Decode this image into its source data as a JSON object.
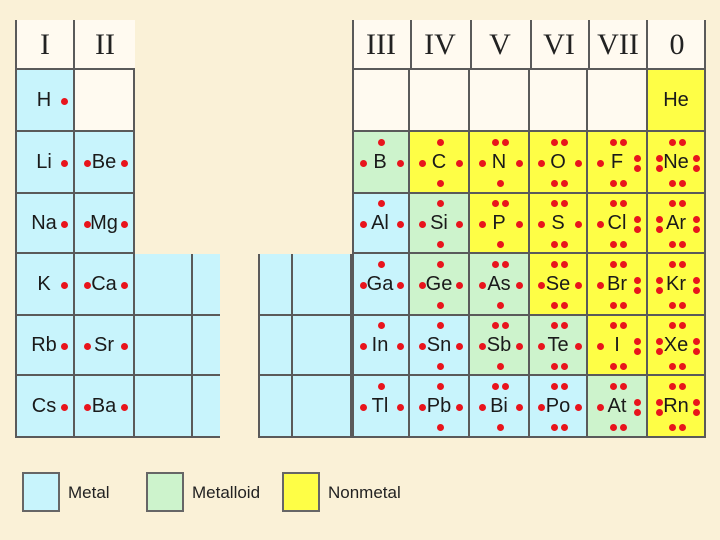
{
  "colors": {
    "metal": "#c8f4fc",
    "metalloid": "#cdf3cc",
    "nonmetal": "#fefe46",
    "empty": "#fffaf0",
    "dot": "#e8141c"
  },
  "groups": [
    {
      "label": "I",
      "col": 0
    },
    {
      "label": "II",
      "col": 1
    },
    {
      "label": "III",
      "col": 2
    },
    {
      "label": "IV",
      "col": 3
    },
    {
      "label": "V",
      "col": 4
    },
    {
      "label": "VI",
      "col": 5
    },
    {
      "label": "VII",
      "col": 6
    },
    {
      "label": "0",
      "col": 7
    }
  ],
  "elements": [
    {
      "symbol": "H",
      "col": 0,
      "row": 0,
      "type": "metal",
      "valence": 1
    },
    {
      "symbol": "He",
      "col": 7,
      "row": 0,
      "type": "nonmetal",
      "valence": 0
    },
    {
      "symbol": "Li",
      "col": 0,
      "row": 1,
      "type": "metal",
      "valence": 1
    },
    {
      "symbol": "Be",
      "col": 1,
      "row": 1,
      "type": "metal",
      "valence": 2
    },
    {
      "symbol": "B",
      "col": 2,
      "row": 1,
      "type": "metalloid",
      "valence": 3
    },
    {
      "symbol": "C",
      "col": 3,
      "row": 1,
      "type": "nonmetal",
      "valence": 4
    },
    {
      "symbol": "N",
      "col": 4,
      "row": 1,
      "type": "nonmetal",
      "valence": 5
    },
    {
      "symbol": "O",
      "col": 5,
      "row": 1,
      "type": "nonmetal",
      "valence": 6
    },
    {
      "symbol": "F",
      "col": 6,
      "row": 1,
      "type": "nonmetal",
      "valence": 7
    },
    {
      "symbol": "Ne",
      "col": 7,
      "row": 1,
      "type": "nonmetal",
      "valence": 8
    },
    {
      "symbol": "Na",
      "col": 0,
      "row": 2,
      "type": "metal",
      "valence": 1
    },
    {
      "symbol": "Mg",
      "col": 1,
      "row": 2,
      "type": "metal",
      "valence": 2
    },
    {
      "symbol": "Al",
      "col": 2,
      "row": 2,
      "type": "metal",
      "valence": 3
    },
    {
      "symbol": "Si",
      "col": 3,
      "row": 2,
      "type": "metalloid",
      "valence": 4
    },
    {
      "symbol": "P",
      "col": 4,
      "row": 2,
      "type": "nonmetal",
      "valence": 5
    },
    {
      "symbol": "S",
      "col": 5,
      "row": 2,
      "type": "nonmetal",
      "valence": 6
    },
    {
      "symbol": "Cl",
      "col": 6,
      "row": 2,
      "type": "nonmetal",
      "valence": 7
    },
    {
      "symbol": "Ar",
      "col": 7,
      "row": 2,
      "type": "nonmetal",
      "valence": 8
    },
    {
      "symbol": "K",
      "col": 0,
      "row": 3,
      "type": "metal",
      "valence": 1
    },
    {
      "symbol": "Ca",
      "col": 1,
      "row": 3,
      "type": "metal",
      "valence": 2
    },
    {
      "symbol": "Ga",
      "col": 2,
      "row": 3,
      "type": "metal",
      "valence": 3
    },
    {
      "symbol": "Ge",
      "col": 3,
      "row": 3,
      "type": "metalloid",
      "valence": 4
    },
    {
      "symbol": "As",
      "col": 4,
      "row": 3,
      "type": "metalloid",
      "valence": 5
    },
    {
      "symbol": "Se",
      "col": 5,
      "row": 3,
      "type": "nonmetal",
      "valence": 6
    },
    {
      "symbol": "Br",
      "col": 6,
      "row": 3,
      "type": "nonmetal",
      "valence": 7
    },
    {
      "symbol": "Kr",
      "col": 7,
      "row": 3,
      "type": "nonmetal",
      "valence": 8
    },
    {
      "symbol": "Rb",
      "col": 0,
      "row": 4,
      "type": "metal",
      "valence": 1
    },
    {
      "symbol": "Sr",
      "col": 1,
      "row": 4,
      "type": "metal",
      "valence": 2
    },
    {
      "symbol": "In",
      "col": 2,
      "row": 4,
      "type": "metal",
      "valence": 3
    },
    {
      "symbol": "Sn",
      "col": 3,
      "row": 4,
      "type": "metal",
      "valence": 4
    },
    {
      "symbol": "Sb",
      "col": 4,
      "row": 4,
      "type": "metalloid",
      "valence": 5
    },
    {
      "symbol": "Te",
      "col": 5,
      "row": 4,
      "type": "metalloid",
      "valence": 6
    },
    {
      "symbol": "I",
      "col": 6,
      "row": 4,
      "type": "nonmetal",
      "valence": 7
    },
    {
      "symbol": "Xe",
      "col": 7,
      "row": 4,
      "type": "nonmetal",
      "valence": 8
    },
    {
      "symbol": "Cs",
      "col": 0,
      "row": 5,
      "type": "metal",
      "valence": 1
    },
    {
      "symbol": "Ba",
      "col": 1,
      "row": 5,
      "type": "metal",
      "valence": 2
    },
    {
      "symbol": "Tl",
      "col": 2,
      "row": 5,
      "type": "metal",
      "valence": 3
    },
    {
      "symbol": "Pb",
      "col": 3,
      "row": 5,
      "type": "metal",
      "valence": 4
    },
    {
      "symbol": "Bi",
      "col": 4,
      "row": 5,
      "type": "metal",
      "valence": 5
    },
    {
      "symbol": "Po",
      "col": 5,
      "row": 5,
      "type": "metal",
      "valence": 6
    },
    {
      "symbol": "At",
      "col": 6,
      "row": 5,
      "type": "metalloid",
      "valence": 7
    },
    {
      "symbol": "Rn",
      "col": 7,
      "row": 5,
      "type": "nonmetal",
      "valence": 8
    }
  ],
  "empty_cells": [
    {
      "col": 1,
      "row": 0
    },
    {
      "col": 2,
      "row": 0
    },
    {
      "col": 3,
      "row": 0
    },
    {
      "col": 4,
      "row": 0
    },
    {
      "col": 5,
      "row": 0
    },
    {
      "col": 6,
      "row": 0
    }
  ],
  "legend": {
    "metal": "Metal",
    "metalloid": "Metalloid",
    "nonmetal": "Nonmetal"
  }
}
